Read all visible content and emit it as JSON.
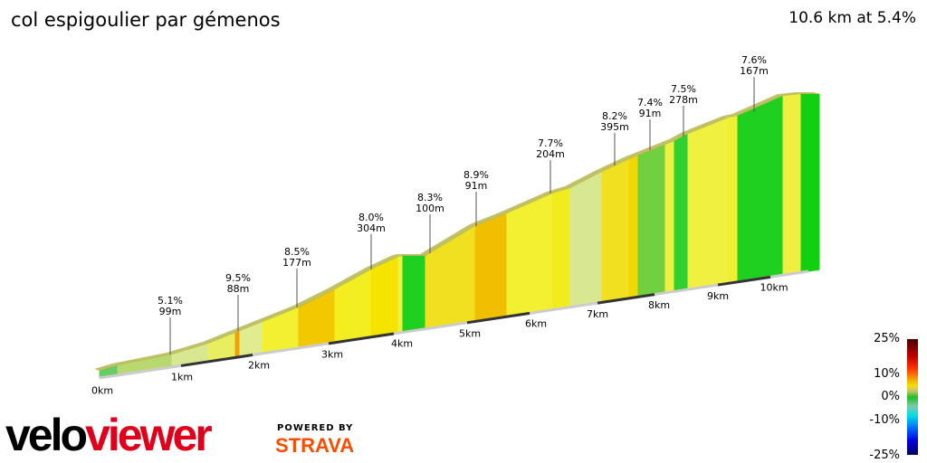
{
  "title": "col espigoulier par gémenos",
  "summary": "10.6 km at 5.4%",
  "chart_data": {
    "type": "area",
    "distance_km": 10.6,
    "avg_grade_pct": 5.4,
    "x_ticks": [
      "0km",
      "1km",
      "2km",
      "3km",
      "4km",
      "5km",
      "6km",
      "7km",
      "8km",
      "9km",
      "10km"
    ],
    "climbs": [
      {
        "grade": "5.1%",
        "length": "99m"
      },
      {
        "grade": "9.5%",
        "length": "88m"
      },
      {
        "grade": "8.5%",
        "length": "177m"
      },
      {
        "grade": "8.0%",
        "length": "304m"
      },
      {
        "grade": "8.3%",
        "length": "100m"
      },
      {
        "grade": "8.9%",
        "length": "91m"
      },
      {
        "grade": "7.7%",
        "length": "204m"
      },
      {
        "grade": "8.2%",
        "length": "395m"
      },
      {
        "grade": "7.4%",
        "length": "91m"
      },
      {
        "grade": "7.5%",
        "length": "278m"
      },
      {
        "grade": "7.6%",
        "length": "167m"
      }
    ],
    "legend": {
      "labels": [
        "25%",
        "10%",
        "0%",
        "-10%",
        "-25%"
      ],
      "colors": [
        "#4a0000",
        "#f0e000",
        "#20c020",
        "#00e0e0",
        "#000060"
      ]
    }
  },
  "branding": {
    "logo": "veloviewer",
    "powered": "POWERED BY",
    "strava": "STRAVA"
  }
}
